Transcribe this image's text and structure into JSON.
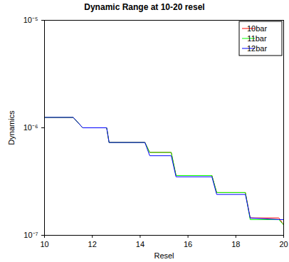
{
  "chart_data": {
    "type": "line",
    "title": "Dynamic Range at 10-20 resel",
    "x_label": "Resel",
    "y_label": "Dynamics",
    "x": [
      10,
      11.2,
      11.6,
      12.6,
      12.7,
      14.2,
      14.4,
      15.3,
      15.5,
      17.0,
      17.2,
      18.4,
      18.6,
      19.8,
      20
    ],
    "series": [
      {
        "name": "10bar",
        "color": "#ff0000",
        "values": [
          1.25e-06,
          1.25e-06,
          1e-06,
          1e-06,
          7.3e-07,
          7.3e-07,
          5.9e-07,
          5.9e-07,
          3.6e-07,
          3.6e-07,
          2.5e-07,
          2.5e-07,
          1.45e-07,
          1.45e-07,
          1.25e-07
        ]
      },
      {
        "name": "11bar",
        "color": "#00ff00",
        "values": [
          1.25e-06,
          1.25e-06,
          1e-06,
          1e-06,
          7.3e-07,
          7.3e-07,
          5.9e-07,
          5.9e-07,
          3.6e-07,
          3.6e-07,
          2.5e-07,
          2.5e-07,
          1.4e-07,
          1.4e-07,
          1.25e-07
        ]
      },
      {
        "name": "12bar",
        "color": "#0000ff",
        "values": [
          1.25e-06,
          1.25e-06,
          1e-06,
          1e-06,
          7.3e-07,
          7.3e-07,
          5.5e-07,
          5.5e-07,
          3.5e-07,
          3.5e-07,
          2.4e-07,
          2.4e-07,
          1.45e-07,
          1.4e-07,
          1.4e-07
        ]
      }
    ],
    "xlim": [
      10,
      20
    ],
    "xticks": [
      10,
      12,
      14,
      16,
      18,
      20
    ],
    "ylim": [
      1e-07,
      1e-05
    ],
    "yticks": [
      {
        "value": 1e-07,
        "label": "10⁻⁷"
      },
      {
        "value": 1e-06,
        "label": "10⁻⁶"
      },
      {
        "value": 1e-05,
        "label": "10⁻⁵"
      }
    ],
    "log": "y",
    "grid": false,
    "legend": "top-right"
  }
}
